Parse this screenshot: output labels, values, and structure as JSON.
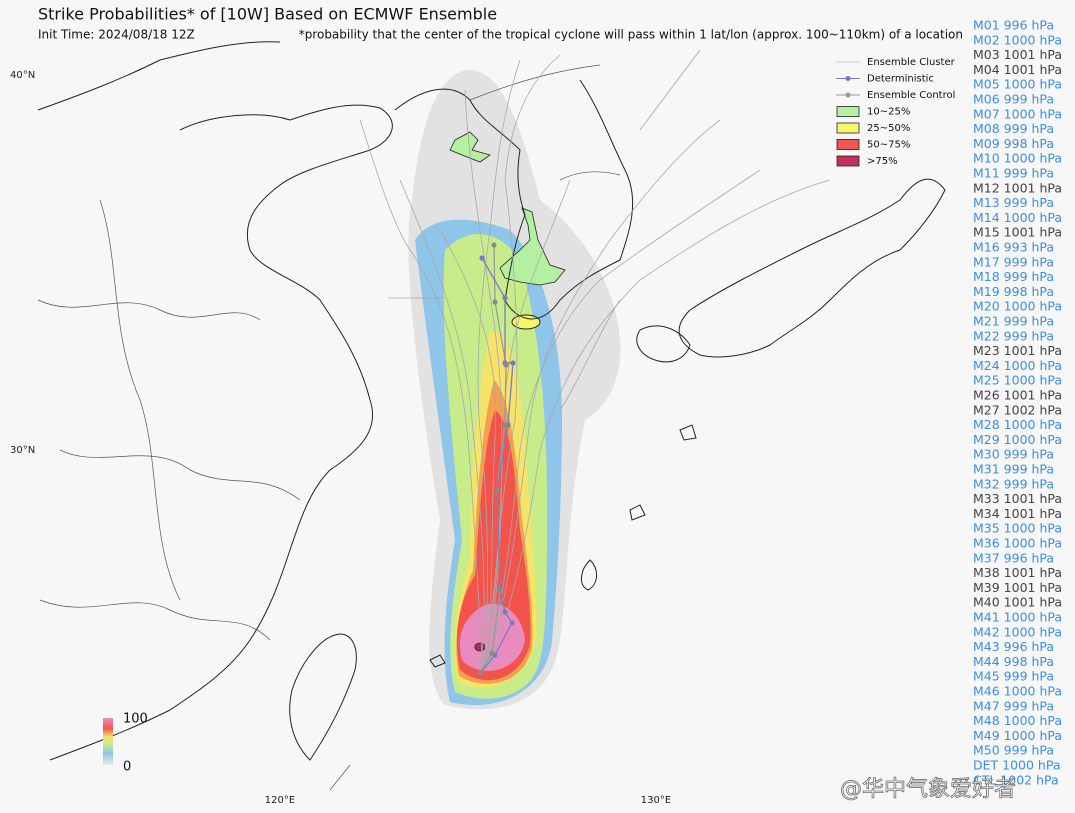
{
  "header": {
    "title": "Strike Probabilities* of [10W] Based on ECMWF Ensemble",
    "init_time": "Init Time: 2024/08/18 12Z",
    "note": "*probability that the center of the tropical cyclone will pass within 1 lat/lon (approx. 100~110km) of a location"
  },
  "legend": {
    "items": [
      {
        "label": "Ensemble Cluster",
        "color": "#c8c8c8"
      },
      {
        "label": "Deterministic",
        "color": "#7b7bc2"
      },
      {
        "label": "Ensemble Control",
        "color": "#9a9a9a"
      },
      {
        "label": "10~25%",
        "color": "#b4f0a0"
      },
      {
        "label": "25~50%",
        "color": "#f7f76a"
      },
      {
        "label": "50~75%",
        "color": "#f05555"
      },
      {
        "label": ">75%",
        "color": "#c0305a"
      }
    ]
  },
  "colorbar": {
    "max_label": "100",
    "min_label": "0"
  },
  "axes": {
    "lat_labels": [
      "40°N",
      "30°N"
    ],
    "lon_labels": [
      "120°E",
      "130°E"
    ]
  },
  "members": [
    {
      "label": "M01 996 hPa",
      "color": "#3a8ee6"
    },
    {
      "label": "M02 1000 hPa",
      "color": "#3a8ee6"
    },
    {
      "label": "M03 1001 hPa",
      "color": "#444444"
    },
    {
      "label": "M04 1001 hPa",
      "color": "#444444"
    },
    {
      "label": "M05 1000 hPa",
      "color": "#3a8ee6"
    },
    {
      "label": "M06 999 hPa",
      "color": "#3a8ee6"
    },
    {
      "label": "M07 1000 hPa",
      "color": "#3a8ee6"
    },
    {
      "label": "M08 999 hPa",
      "color": "#3a8ee6"
    },
    {
      "label": "M09 998 hPa",
      "color": "#3a8ee6"
    },
    {
      "label": "M10 1000 hPa",
      "color": "#3a8ee6"
    },
    {
      "label": "M11 999 hPa",
      "color": "#3a8ee6"
    },
    {
      "label": "M12 1001 hPa",
      "color": "#444444"
    },
    {
      "label": "M13 999 hPa",
      "color": "#3a8ee6"
    },
    {
      "label": "M14 1000 hPa",
      "color": "#3a8ee6"
    },
    {
      "label": "M15 1001 hPa",
      "color": "#444444"
    },
    {
      "label": "M16 993 hPa",
      "color": "#3a8ee6"
    },
    {
      "label": "M17 999 hPa",
      "color": "#3a8ee6"
    },
    {
      "label": "M18 999 hPa",
      "color": "#3a8ee6"
    },
    {
      "label": "M19 998 hPa",
      "color": "#3a8ee6"
    },
    {
      "label": "M20 1000 hPa",
      "color": "#3a8ee6"
    },
    {
      "label": "M21 999 hPa",
      "color": "#3a8ee6"
    },
    {
      "label": "M22 999 hPa",
      "color": "#3a8ee6"
    },
    {
      "label": "M23 1001 hPa",
      "color": "#444444"
    },
    {
      "label": "M24 1000 hPa",
      "color": "#3a8ee6"
    },
    {
      "label": "M25 1000 hPa",
      "color": "#3a8ee6"
    },
    {
      "label": "M26 1001 hPa",
      "color": "#444444"
    },
    {
      "label": "M27 1002 hPa",
      "color": "#444444"
    },
    {
      "label": "M28 1000 hPa",
      "color": "#3a8ee6"
    },
    {
      "label": "M29 1000 hPa",
      "color": "#3a8ee6"
    },
    {
      "label": "M30 999 hPa",
      "color": "#3a8ee6"
    },
    {
      "label": "M31 999 hPa",
      "color": "#3a8ee6"
    },
    {
      "label": "M32 999 hPa",
      "color": "#3a8ee6"
    },
    {
      "label": "M33 1001 hPa",
      "color": "#444444"
    },
    {
      "label": "M34 1001 hPa",
      "color": "#444444"
    },
    {
      "label": "M35 1000 hPa",
      "color": "#3a8ee6"
    },
    {
      "label": "M36 1000 hPa",
      "color": "#3a8ee6"
    },
    {
      "label": "M37 996 hPa",
      "color": "#3a8ee6"
    },
    {
      "label": "M38 1001 hPa",
      "color": "#444444"
    },
    {
      "label": "M39 1001 hPa",
      "color": "#444444"
    },
    {
      "label": "M40 1001 hPa",
      "color": "#444444"
    },
    {
      "label": "M41 1000 hPa",
      "color": "#3a8ee6"
    },
    {
      "label": "M42 1000 hPa",
      "color": "#3a8ee6"
    },
    {
      "label": "M43 996 hPa",
      "color": "#3a8ee6"
    },
    {
      "label": "M44 998 hPa",
      "color": "#3a8ee6"
    },
    {
      "label": "M45 999 hPa",
      "color": "#3a8ee6"
    },
    {
      "label": "M46 1000 hPa",
      "color": "#3a8ee6"
    },
    {
      "label": "M47 999 hPa",
      "color": "#3a8ee6"
    },
    {
      "label": "M48 1000 hPa",
      "color": "#3a8ee6"
    },
    {
      "label": "M49 1000 hPa",
      "color": "#3a8ee6"
    },
    {
      "label": "M50 999 hPa",
      "color": "#3a8ee6"
    },
    {
      "label": "DET 1000 hPa",
      "color": "#3a8ee6"
    },
    {
      "label": "CTL 1002 hPa",
      "color": "#3a8ee6"
    }
  ],
  "watermark": "@华中气象爱好者"
}
